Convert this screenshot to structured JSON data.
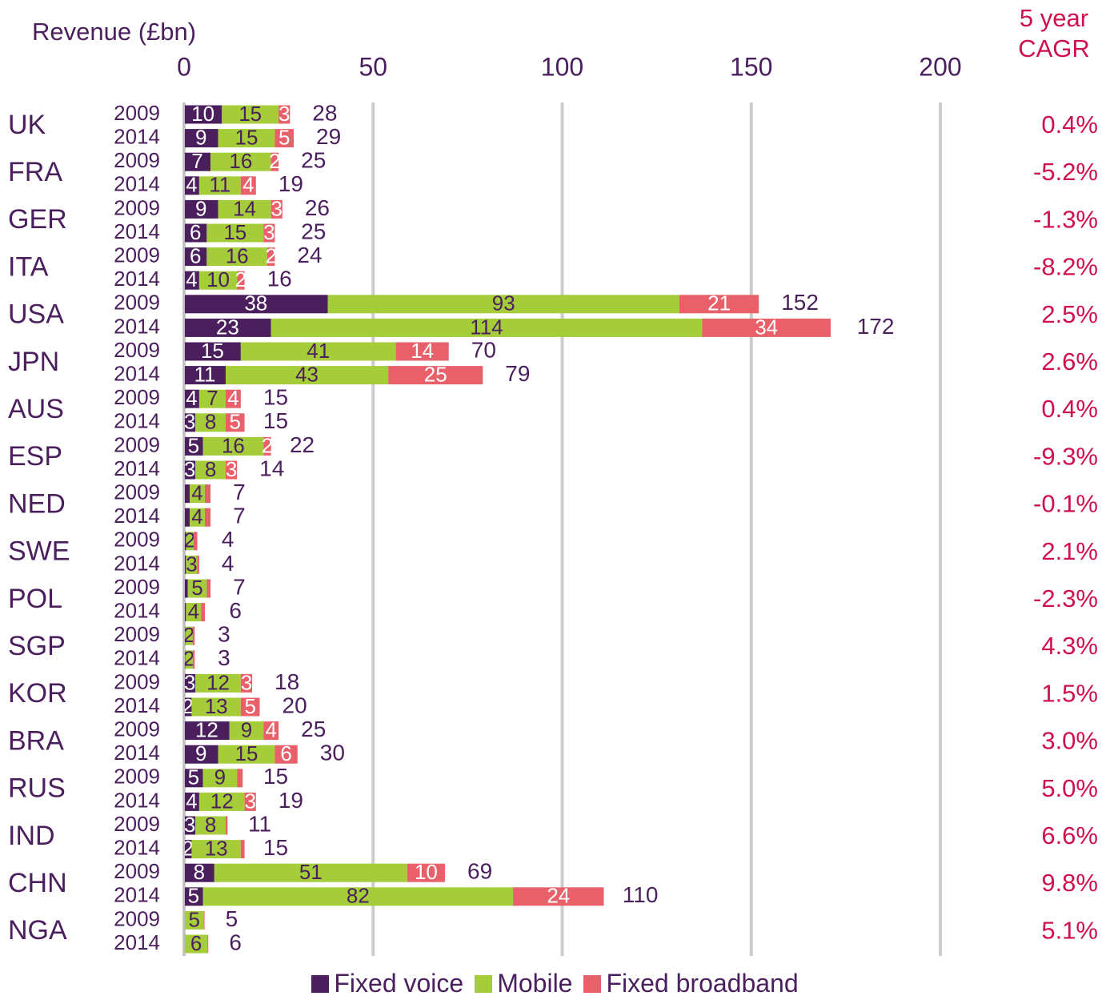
{
  "chart_data": {
    "type": "stacked-bar-horizontal",
    "x_label": "Revenue (£bn)",
    "cagr_title": "5 year CAGR",
    "xlim": [
      0,
      200
    ],
    "xticks": [
      0,
      50,
      100,
      150,
      200
    ],
    "grid": true,
    "legend": "bottom",
    "groups": [
      {
        "name": "UK",
        "cagr": "0.4%"
      },
      {
        "name": "FRA",
        "cagr": "-5.2%"
      },
      {
        "name": "GER",
        "cagr": "-1.3%"
      },
      {
        "name": "ITA",
        "cagr": "-8.2%"
      },
      {
        "name": "USA",
        "cagr": "2.5%"
      },
      {
        "name": "JPN",
        "cagr": "2.6%"
      },
      {
        "name": "AUS",
        "cagr": "0.4%"
      },
      {
        "name": "ESP",
        "cagr": "-9.3%"
      },
      {
        "name": "NED",
        "cagr": "-0.1%"
      },
      {
        "name": "SWE",
        "cagr": "2.1%"
      },
      {
        "name": "POL",
        "cagr": "-2.3%"
      },
      {
        "name": "SGP",
        "cagr": "4.3%"
      },
      {
        "name": "KOR",
        "cagr": "1.5%"
      },
      {
        "name": "BRA",
        "cagr": "3.0%"
      },
      {
        "name": "RUS",
        "cagr": "5.0%"
      },
      {
        "name": "IND",
        "cagr": "6.6%"
      },
      {
        "name": "CHN",
        "cagr": "9.8%"
      },
      {
        "name": "NGA",
        "cagr": "5.1%"
      }
    ],
    "categories": [
      "2009",
      "2014",
      "2009",
      "2014",
      "2009",
      "2014",
      "2009",
      "2014",
      "2009",
      "2014",
      "2009",
      "2014",
      "2009",
      "2014",
      "2009",
      "2014",
      "2009",
      "2014",
      "2009",
      "2014",
      "2009",
      "2014",
      "2009",
      "2014",
      "2009",
      "2014",
      "2009",
      "2014",
      "2009",
      "2014",
      "2009",
      "2014",
      "2009",
      "2014",
      "2009",
      "2014"
    ],
    "series": [
      {
        "name": "Fixed voice",
        "color": "#4b1f5e",
        "label_color": "#ffffff",
        "values": [
          10,
          9,
          7,
          4,
          9,
          6,
          6,
          4,
          38,
          23,
          15,
          11,
          4,
          3,
          5,
          3,
          1.5,
          1.5,
          0.5,
          0.5,
          1,
          0.5,
          0.3,
          0.3,
          3,
          2,
          12,
          9,
          5,
          4,
          3,
          2,
          8,
          5,
          0.2,
          0.2
        ],
        "value_labels": [
          "10",
          "9",
          "7",
          "4",
          "9",
          "6",
          "6",
          "4",
          "38",
          "23",
          "15",
          "11",
          "4",
          "3",
          "5",
          "3",
          null,
          null,
          null,
          null,
          null,
          null,
          null,
          null,
          "3",
          "2",
          "12",
          "9",
          "5",
          "4",
          "3",
          "2",
          "8",
          "5",
          null,
          null
        ]
      },
      {
        "name": "Mobile",
        "color": "#a4cd39",
        "label_color": "#4b1f5e",
        "values": [
          15,
          15,
          16,
          11,
          14,
          15,
          16,
          10,
          93,
          114,
          41,
          43,
          7,
          8,
          16,
          8,
          4,
          4,
          2,
          3,
          5,
          4,
          2,
          2,
          12,
          13,
          9,
          15,
          9,
          12,
          8,
          13,
          51,
          82,
          5,
          6
        ],
        "value_labels": [
          "15",
          "15",
          "16",
          "11",
          "14",
          "15",
          "16",
          "10",
          "93",
          "114",
          "41",
          "43",
          "7",
          "8",
          "16",
          "8",
          "4",
          "4",
          "2",
          "3",
          "5",
          "4",
          "2",
          "2",
          "12",
          "13",
          "9",
          "15",
          "9",
          "12",
          "8",
          "13",
          "51",
          "82",
          "5",
          "6"
        ]
      },
      {
        "name": "Fixed broadband",
        "color": "#e8606a",
        "label_color": "#ffffff",
        "values": [
          3,
          5,
          2,
          4,
          3,
          3,
          2,
          2,
          21,
          34,
          14,
          25,
          4,
          5,
          2,
          3,
          1.5,
          1.5,
          1,
          0.5,
          1,
          1,
          0.5,
          0.5,
          3,
          5,
          4,
          6,
          1.5,
          3,
          0.5,
          1,
          10,
          24,
          0.2,
          0.2
        ],
        "value_labels": [
          "3",
          "5",
          "2",
          "4",
          "3",
          "3",
          "2",
          "2",
          "21",
          "34",
          "14",
          "25",
          "4",
          "5",
          "2",
          "3",
          null,
          null,
          null,
          null,
          null,
          null,
          null,
          null,
          "3",
          "5",
          "4",
          "6",
          null,
          "3",
          null,
          null,
          "10",
          "24",
          null,
          null
        ]
      }
    ],
    "totals": [
      28,
      29,
      25,
      19,
      26,
      25,
      24,
      16,
      152,
      172,
      70,
      79,
      15,
      15,
      22,
      14,
      7,
      7,
      4,
      4,
      7,
      6,
      3,
      3,
      18,
      20,
      25,
      30,
      15,
      19,
      11,
      15,
      69,
      110,
      5,
      6
    ]
  }
}
